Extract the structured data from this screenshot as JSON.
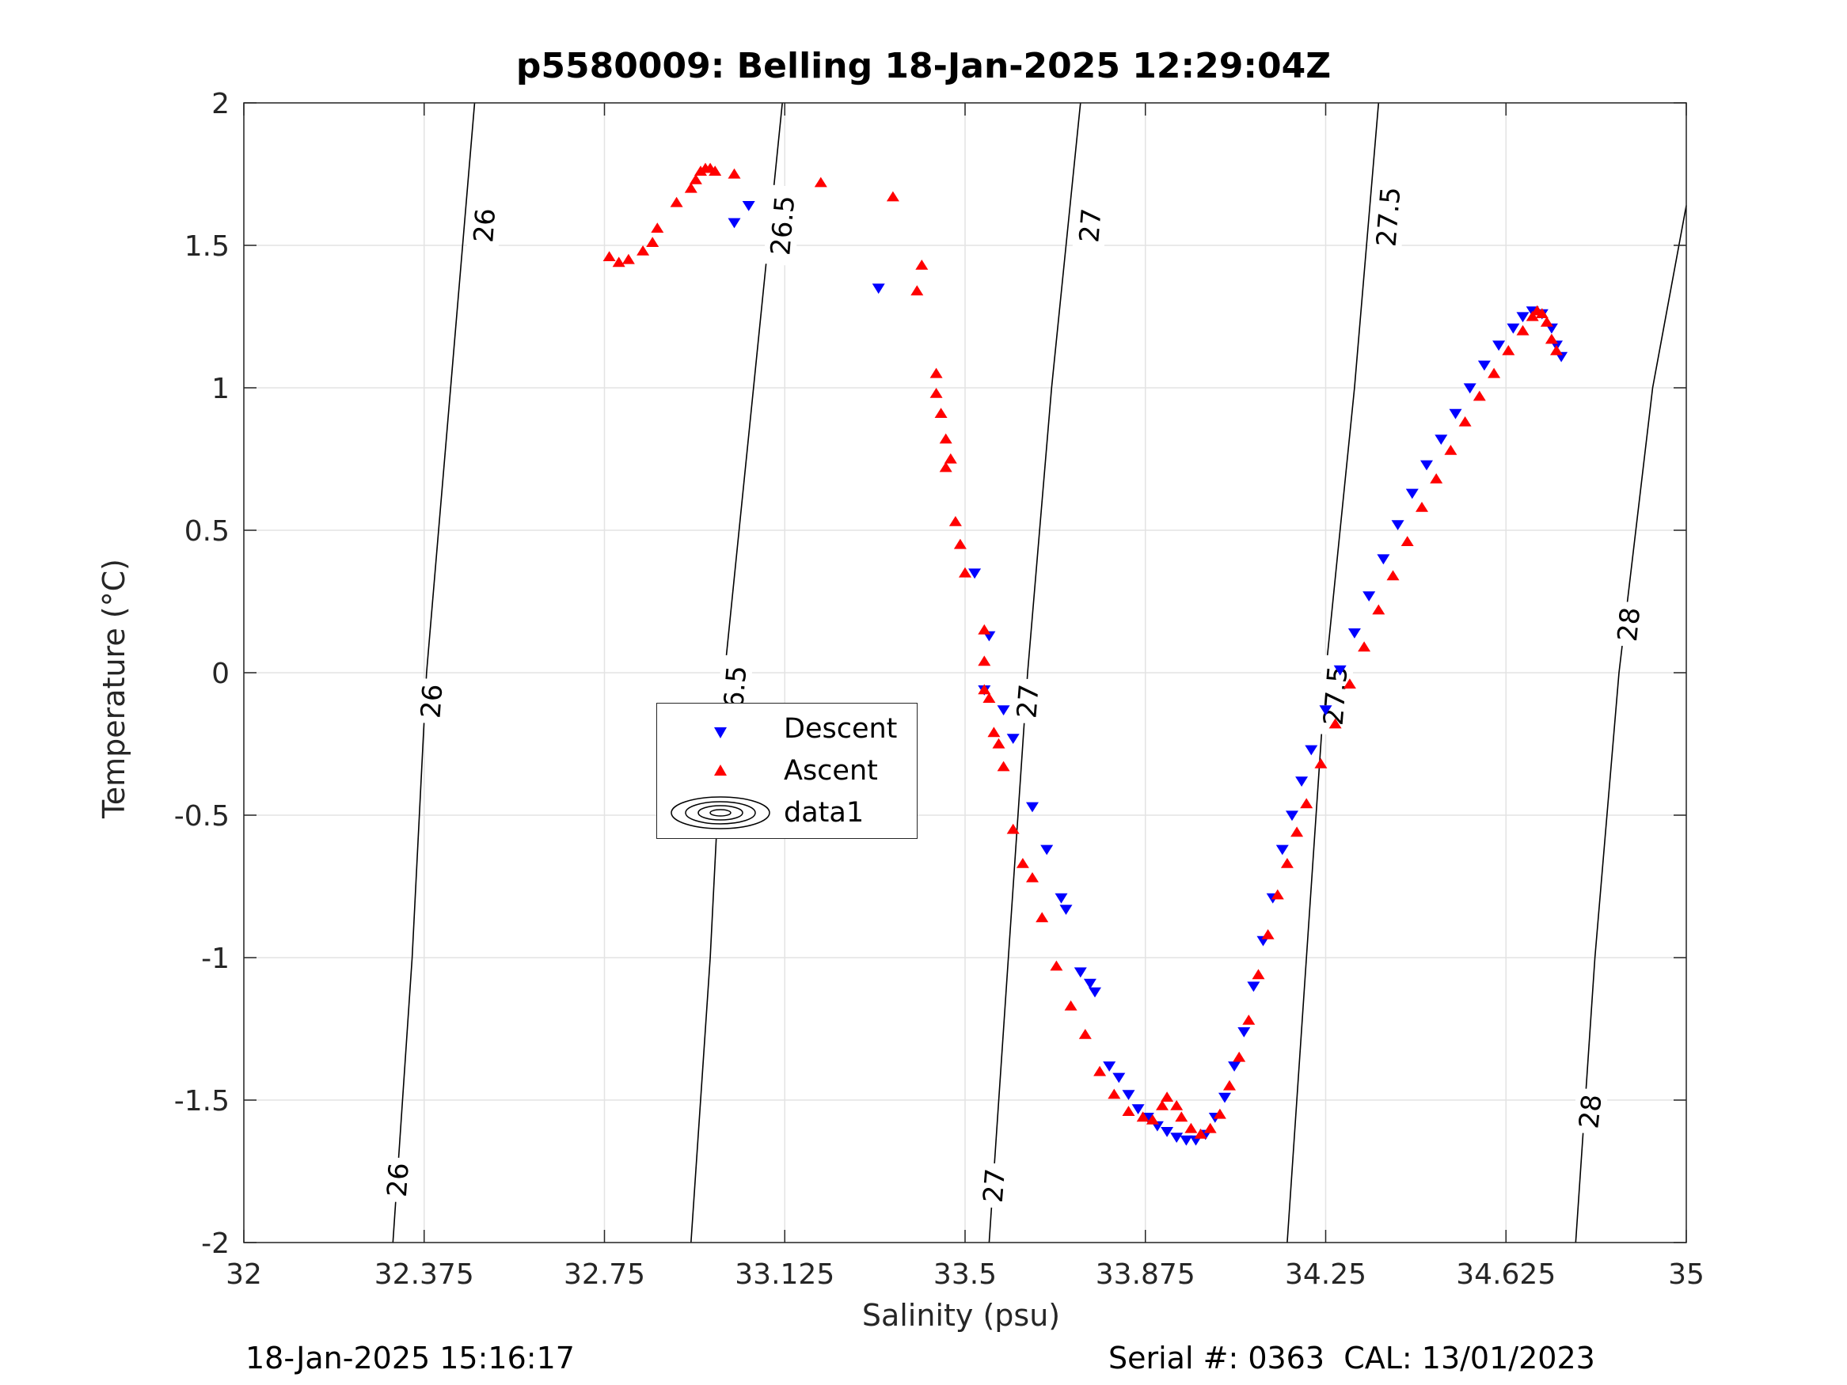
{
  "page": {
    "title": "p5580009: Belling 18-Jan-2025 12:29:04Z",
    "footer_left": "18-Jan-2025 15:16:17",
    "footer_right": "Serial #: 0363  CAL: 13/01/2023"
  },
  "legend": {
    "items": [
      {
        "label": "Descent",
        "symbol": "triangle-down-icon",
        "color": "#0000ff"
      },
      {
        "label": "Ascent",
        "symbol": "triangle-up-icon",
        "color": "#ff0000"
      },
      {
        "label": "data1",
        "symbol": "contour-ellipses-icon",
        "color": "#000000"
      }
    ]
  },
  "chart_data": {
    "type": "scatter",
    "title": "p5580009: Belling 18-Jan-2025 12:29:04Z",
    "xlabel": "Salinity (psu)",
    "ylabel": "Temperature (°C)",
    "xlim": [
      32,
      35
    ],
    "ylim": [
      -2,
      2
    ],
    "x_ticks": [
      32,
      32.375,
      32.75,
      33.125,
      33.5,
      33.875,
      34.25,
      34.625,
      35
    ],
    "x_tick_labels": [
      "32",
      "32.375",
      "32.75",
      "33.125",
      "33.5",
      "33.875",
      "34.25",
      "34.625",
      "35"
    ],
    "y_ticks": [
      2,
      1.5,
      1,
      0.5,
      0,
      -0.5,
      -1,
      -1.5,
      -2
    ],
    "y_tick_labels": [
      "2",
      "1.5",
      "1",
      "0.5",
      "0",
      "-0.5",
      "-1",
      "-1.5",
      "-2"
    ],
    "grid": true,
    "legend_position": "center-left",
    "series": [
      {
        "name": "Descent",
        "marker": "triangle-down",
        "color": "#0000ff",
        "points": [
          [
            33.02,
            1.58
          ],
          [
            33.05,
            1.64
          ],
          [
            33.32,
            1.35
          ],
          [
            33.52,
            0.35
          ],
          [
            33.55,
            0.13
          ],
          [
            33.54,
            -0.06
          ],
          [
            33.58,
            -0.13
          ],
          [
            33.6,
            -0.23
          ],
          [
            33.64,
            -0.47
          ],
          [
            33.67,
            -0.62
          ],
          [
            33.7,
            -0.79
          ],
          [
            33.71,
            -0.83
          ],
          [
            33.74,
            -1.05
          ],
          [
            33.76,
            -1.09
          ],
          [
            33.77,
            -1.12
          ],
          [
            33.8,
            -1.38
          ],
          [
            33.82,
            -1.42
          ],
          [
            33.84,
            -1.48
          ],
          [
            33.86,
            -1.53
          ],
          [
            33.88,
            -1.56
          ],
          [
            33.9,
            -1.59
          ],
          [
            33.92,
            -1.61
          ],
          [
            33.94,
            -1.63
          ],
          [
            33.96,
            -1.64
          ],
          [
            33.98,
            -1.64
          ],
          [
            34.0,
            -1.62
          ],
          [
            34.02,
            -1.56
          ],
          [
            34.04,
            -1.49
          ],
          [
            34.06,
            -1.38
          ],
          [
            34.08,
            -1.26
          ],
          [
            34.1,
            -1.1
          ],
          [
            34.12,
            -0.94
          ],
          [
            34.14,
            -0.79
          ],
          [
            34.16,
            -0.62
          ],
          [
            34.18,
            -0.5
          ],
          [
            34.2,
            -0.38
          ],
          [
            34.22,
            -0.27
          ],
          [
            34.25,
            -0.13
          ],
          [
            34.28,
            0.01
          ],
          [
            34.31,
            0.14
          ],
          [
            34.34,
            0.27
          ],
          [
            34.37,
            0.4
          ],
          [
            34.4,
            0.52
          ],
          [
            34.43,
            0.63
          ],
          [
            34.46,
            0.73
          ],
          [
            34.49,
            0.82
          ],
          [
            34.52,
            0.91
          ],
          [
            34.55,
            1.0
          ],
          [
            34.58,
            1.08
          ],
          [
            34.61,
            1.15
          ],
          [
            34.64,
            1.21
          ],
          [
            34.66,
            1.25
          ],
          [
            34.68,
            1.27
          ],
          [
            34.7,
            1.26
          ],
          [
            34.72,
            1.21
          ],
          [
            34.73,
            1.15
          ],
          [
            34.74,
            1.11
          ]
        ]
      },
      {
        "name": "Ascent",
        "marker": "triangle-up",
        "color": "#ff0000",
        "points": [
          [
            32.76,
            1.46
          ],
          [
            32.78,
            1.44
          ],
          [
            32.8,
            1.45
          ],
          [
            32.83,
            1.48
          ],
          [
            32.85,
            1.51
          ],
          [
            32.86,
            1.56
          ],
          [
            32.9,
            1.65
          ],
          [
            32.93,
            1.7
          ],
          [
            32.94,
            1.73
          ],
          [
            32.95,
            1.76
          ],
          [
            32.96,
            1.77
          ],
          [
            32.97,
            1.77
          ],
          [
            32.98,
            1.76
          ],
          [
            33.02,
            1.75
          ],
          [
            33.2,
            1.72
          ],
          [
            33.35,
            1.67
          ],
          [
            33.41,
            1.43
          ],
          [
            33.4,
            1.34
          ],
          [
            33.44,
            1.05
          ],
          [
            33.44,
            0.98
          ],
          [
            33.45,
            0.91
          ],
          [
            33.46,
            0.82
          ],
          [
            33.47,
            0.75
          ],
          [
            33.46,
            0.72
          ],
          [
            33.48,
            0.53
          ],
          [
            33.49,
            0.45
          ],
          [
            33.5,
            0.35
          ],
          [
            33.54,
            0.15
          ],
          [
            33.54,
            0.04
          ],
          [
            33.54,
            -0.06
          ],
          [
            33.55,
            -0.09
          ],
          [
            33.56,
            -0.21
          ],
          [
            33.57,
            -0.25
          ],
          [
            33.58,
            -0.33
          ],
          [
            33.6,
            -0.55
          ],
          [
            33.62,
            -0.67
          ],
          [
            33.64,
            -0.72
          ],
          [
            33.66,
            -0.86
          ],
          [
            33.69,
            -1.03
          ],
          [
            33.72,
            -1.17
          ],
          [
            33.75,
            -1.27
          ],
          [
            33.78,
            -1.4
          ],
          [
            33.81,
            -1.48
          ],
          [
            33.84,
            -1.54
          ],
          [
            33.87,
            -1.56
          ],
          [
            33.89,
            -1.57
          ],
          [
            33.91,
            -1.52
          ],
          [
            33.92,
            -1.49
          ],
          [
            33.94,
            -1.52
          ],
          [
            33.95,
            -1.56
          ],
          [
            33.97,
            -1.6
          ],
          [
            33.99,
            -1.62
          ],
          [
            34.01,
            -1.6
          ],
          [
            34.03,
            -1.55
          ],
          [
            34.05,
            -1.45
          ],
          [
            34.07,
            -1.35
          ],
          [
            34.09,
            -1.22
          ],
          [
            34.11,
            -1.06
          ],
          [
            34.13,
            -0.92
          ],
          [
            34.15,
            -0.78
          ],
          [
            34.17,
            -0.67
          ],
          [
            34.19,
            -0.56
          ],
          [
            34.21,
            -0.46
          ],
          [
            34.24,
            -0.32
          ],
          [
            34.27,
            -0.18
          ],
          [
            34.3,
            -0.04
          ],
          [
            34.33,
            0.09
          ],
          [
            34.36,
            0.22
          ],
          [
            34.39,
            0.34
          ],
          [
            34.42,
            0.46
          ],
          [
            34.45,
            0.58
          ],
          [
            34.48,
            0.68
          ],
          [
            34.51,
            0.78
          ],
          [
            34.54,
            0.88
          ],
          [
            34.57,
            0.97
          ],
          [
            34.6,
            1.05
          ],
          [
            34.63,
            1.13
          ],
          [
            34.66,
            1.2
          ],
          [
            34.68,
            1.25
          ],
          [
            34.69,
            1.27
          ],
          [
            34.7,
            1.26
          ],
          [
            34.71,
            1.23
          ],
          [
            34.72,
            1.17
          ],
          [
            34.73,
            1.13
          ]
        ]
      }
    ],
    "isopycnals": [
      {
        "label": "26",
        "points": [
          [
            32.31,
            -2
          ],
          [
            32.35,
            -1.0
          ],
          [
            32.38,
            0.0
          ],
          [
            32.43,
            1.0
          ],
          [
            32.48,
            2
          ]
        ],
        "label_positions": [
          [
            32.32,
            -1.78
          ],
          [
            32.39,
            -0.1
          ],
          [
            32.5,
            1.57
          ]
        ]
      },
      {
        "label": "26.5",
        "points": [
          [
            32.93,
            -2
          ],
          [
            32.97,
            -1.0
          ],
          [
            33.0,
            0.0
          ],
          [
            33.06,
            1.0
          ],
          [
            33.12,
            2
          ]
        ],
        "label_positions": [
          [
            33.02,
            -0.08
          ],
          [
            33.12,
            1.57
          ]
        ]
      },
      {
        "label": "27",
        "points": [
          [
            33.55,
            -2
          ],
          [
            33.59,
            -1.0
          ],
          [
            33.63,
            0.0
          ],
          [
            33.68,
            1.0
          ],
          [
            33.74,
            2
          ]
        ],
        "label_positions": [
          [
            33.56,
            -1.8
          ],
          [
            33.63,
            -0.1
          ],
          [
            33.76,
            1.57
          ]
        ]
      },
      {
        "label": "27.5",
        "points": [
          [
            34.17,
            -2
          ],
          [
            34.21,
            -1.0
          ],
          [
            34.25,
            0.0
          ],
          [
            34.31,
            1.0
          ],
          [
            34.36,
            2
          ]
        ],
        "label_positions": [
          [
            34.27,
            -0.08
          ],
          [
            34.38,
            1.6
          ]
        ]
      },
      {
        "label": "28",
        "points": [
          [
            34.77,
            -2
          ],
          [
            34.81,
            -1.0
          ],
          [
            34.86,
            0.0
          ],
          [
            34.93,
            1.0
          ],
          [
            35.0,
            1.64
          ]
        ],
        "label_positions": [
          [
            34.8,
            -1.54
          ],
          [
            34.88,
            0.17
          ]
        ]
      }
    ]
  }
}
